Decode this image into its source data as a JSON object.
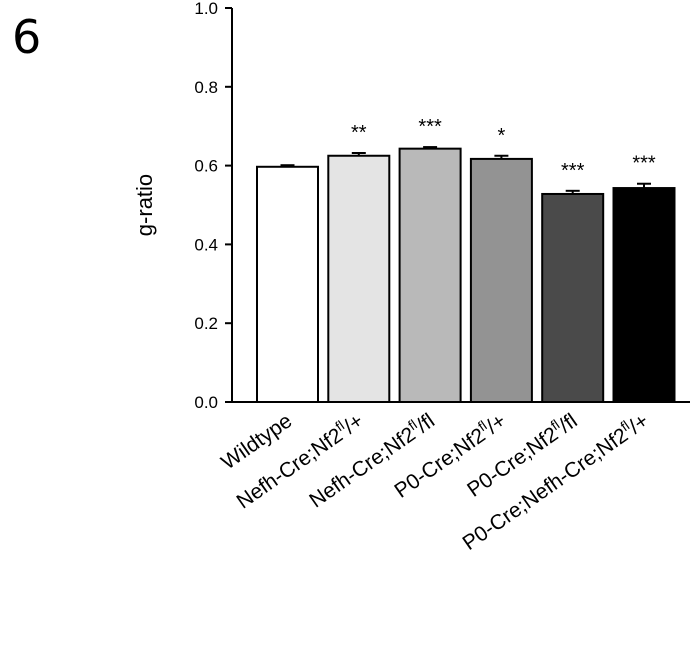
{
  "panel_label": "6",
  "chart_data": {
    "type": "bar",
    "title": "",
    "xlabel": "",
    "ylabel": "g-ratio",
    "ylim": [
      0,
      1.0
    ],
    "yticks": [
      "0.0",
      "0.2",
      "0.4",
      "0.6",
      "0.8",
      "1.0"
    ],
    "grid": false,
    "legend": "none",
    "categories": [
      {
        "base": "Wildtype",
        "sup": "",
        "after": ""
      },
      {
        "base": "Nefh-Cre;Nf2",
        "sup": "fl",
        "after": "/+"
      },
      {
        "base": "Nefh-Cre;Nf2",
        "sup": "fl",
        "after": "/fl"
      },
      {
        "base": "P0-Cre;Nf2",
        "sup": "fl",
        "after": "/+"
      },
      {
        "base": "P0-Cre;Nf2",
        "sup": "fl",
        "after": "/fl"
      },
      {
        "base": "P0-Cre;Nefh-Cre;Nf2",
        "sup": "fl",
        "after": "/+"
      }
    ],
    "values": [
      0.597,
      0.625,
      0.643,
      0.617,
      0.528,
      0.543
    ],
    "errors": [
      0.004,
      0.007,
      0.004,
      0.008,
      0.008,
      0.011
    ],
    "significance": [
      "",
      "**",
      "***",
      "*",
      "***",
      "***"
    ],
    "colors": [
      "#ffffff",
      "#e4e4e4",
      "#b9b9b9",
      "#939393",
      "#4a4a4a",
      "#000000"
    ]
  }
}
